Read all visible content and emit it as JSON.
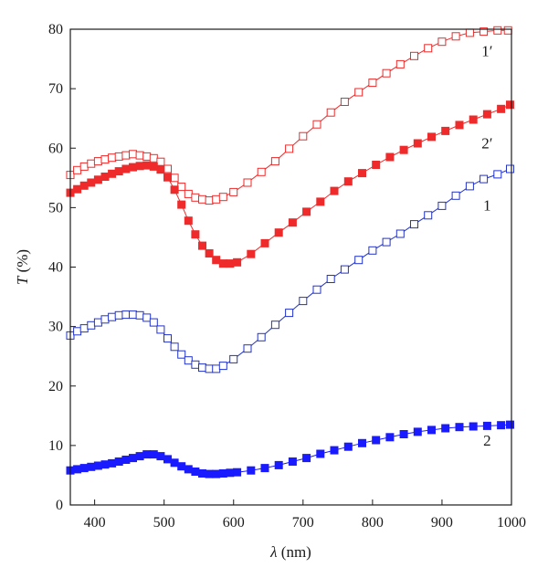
{
  "chart_data": {
    "type": "scatter",
    "xlabel_italic": "λ",
    "xlabel_unit": " (nm)",
    "ylabel_italic": "T",
    "ylabel_unit": " (%)",
    "xlim": [
      365,
      1000
    ],
    "ylim": [
      0,
      80
    ],
    "xticks": [
      "400",
      "500",
      "600",
      "700",
      "800",
      "900",
      "1000"
    ],
    "yticks": [
      "0",
      "10",
      "20",
      "30",
      "40",
      "50",
      "60",
      "70",
      "80"
    ],
    "grid": false,
    "series": [
      {
        "name": "1′",
        "color": "#ee2a2a",
        "marker": "open-square",
        "points": [
          [
            365,
            55.5
          ],
          [
            375,
            56.3
          ],
          [
            385,
            56.9
          ],
          [
            395,
            57.4
          ],
          [
            405,
            57.8
          ],
          [
            415,
            58.1
          ],
          [
            425,
            58.4
          ],
          [
            435,
            58.6
          ],
          [
            445,
            58.8
          ],
          [
            455,
            59.0
          ],
          [
            465,
            58.8
          ],
          [
            475,
            58.6
          ],
          [
            485,
            58.3
          ],
          [
            495,
            57.7
          ],
          [
            505,
            56.5
          ],
          [
            515,
            55.0
          ],
          [
            525,
            53.5
          ],
          [
            535,
            52.3
          ],
          [
            545,
            51.7
          ],
          [
            555,
            51.4
          ],
          [
            565,
            51.2
          ],
          [
            575,
            51.4
          ],
          [
            585,
            51.8
          ],
          [
            600,
            52.6
          ],
          [
            620,
            54.2
          ],
          [
            640,
            56.0
          ],
          [
            660,
            57.8
          ],
          [
            680,
            59.9
          ],
          [
            700,
            62.0
          ],
          [
            720,
            64.0
          ],
          [
            740,
            66.0
          ],
          [
            760,
            67.8
          ],
          [
            780,
            69.4
          ],
          [
            800,
            71.0
          ],
          [
            820,
            72.6
          ],
          [
            840,
            74.1
          ],
          [
            860,
            75.5
          ],
          [
            880,
            76.8
          ],
          [
            900,
            77.9
          ],
          [
            920,
            78.8
          ],
          [
            940,
            79.4
          ],
          [
            960,
            79.6
          ],
          [
            980,
            79.8
          ],
          [
            995,
            79.8
          ]
        ]
      },
      {
        "name": "2′",
        "color": "#ee2a2a",
        "marker": "filled-square",
        "points": [
          [
            365,
            52.5
          ],
          [
            375,
            53.1
          ],
          [
            385,
            53.7
          ],
          [
            395,
            54.2
          ],
          [
            405,
            54.7
          ],
          [
            415,
            55.2
          ],
          [
            425,
            55.7
          ],
          [
            435,
            56.1
          ],
          [
            445,
            56.5
          ],
          [
            455,
            56.8
          ],
          [
            465,
            57.0
          ],
          [
            475,
            57.1
          ],
          [
            485,
            56.9
          ],
          [
            495,
            56.4
          ],
          [
            505,
            55.1
          ],
          [
            515,
            53.0
          ],
          [
            525,
            50.5
          ],
          [
            535,
            47.8
          ],
          [
            545,
            45.5
          ],
          [
            555,
            43.6
          ],
          [
            565,
            42.3
          ],
          [
            575,
            41.2
          ],
          [
            585,
            40.6
          ],
          [
            595,
            40.6
          ],
          [
            605,
            40.8
          ],
          [
            625,
            42.2
          ],
          [
            645,
            44.0
          ],
          [
            665,
            45.8
          ],
          [
            685,
            47.5
          ],
          [
            705,
            49.3
          ],
          [
            725,
            51.0
          ],
          [
            745,
            52.8
          ],
          [
            765,
            54.4
          ],
          [
            785,
            55.8
          ],
          [
            805,
            57.2
          ],
          [
            825,
            58.5
          ],
          [
            845,
            59.7
          ],
          [
            865,
            60.8
          ],
          [
            885,
            61.9
          ],
          [
            905,
            62.9
          ],
          [
            925,
            63.9
          ],
          [
            945,
            64.8
          ],
          [
            965,
            65.7
          ],
          [
            985,
            66.6
          ],
          [
            998,
            67.3
          ]
        ]
      },
      {
        "name": "1",
        "color": "#2233cc",
        "marker": "open-square",
        "points": [
          [
            365,
            28.5
          ],
          [
            375,
            29.2
          ],
          [
            385,
            29.7
          ],
          [
            395,
            30.2
          ],
          [
            405,
            30.7
          ],
          [
            415,
            31.2
          ],
          [
            425,
            31.6
          ],
          [
            435,
            31.9
          ],
          [
            445,
            32.0
          ],
          [
            455,
            32.0
          ],
          [
            465,
            31.9
          ],
          [
            475,
            31.5
          ],
          [
            485,
            30.7
          ],
          [
            495,
            29.5
          ],
          [
            505,
            28.0
          ],
          [
            515,
            26.6
          ],
          [
            525,
            25.3
          ],
          [
            535,
            24.3
          ],
          [
            545,
            23.6
          ],
          [
            555,
            23.1
          ],
          [
            565,
            22.9
          ],
          [
            575,
            22.9
          ],
          [
            585,
            23.4
          ],
          [
            600,
            24.5
          ],
          [
            620,
            26.3
          ],
          [
            640,
            28.2
          ],
          [
            660,
            30.3
          ],
          [
            680,
            32.3
          ],
          [
            700,
            34.3
          ],
          [
            720,
            36.2
          ],
          [
            740,
            38.0
          ],
          [
            760,
            39.6
          ],
          [
            780,
            41.2
          ],
          [
            800,
            42.8
          ],
          [
            820,
            44.2
          ],
          [
            840,
            45.6
          ],
          [
            860,
            47.2
          ],
          [
            880,
            48.7
          ],
          [
            900,
            50.3
          ],
          [
            920,
            52.0
          ],
          [
            940,
            53.6
          ],
          [
            960,
            54.8
          ],
          [
            980,
            55.6
          ],
          [
            998,
            56.5
          ]
        ]
      },
      {
        "name": "2",
        "color": "#1a1aff",
        "marker": "filled-square",
        "points": [
          [
            365,
            5.8
          ],
          [
            375,
            6.0
          ],
          [
            385,
            6.2
          ],
          [
            395,
            6.4
          ],
          [
            405,
            6.6
          ],
          [
            415,
            6.8
          ],
          [
            425,
            7.0
          ],
          [
            435,
            7.3
          ],
          [
            445,
            7.6
          ],
          [
            455,
            7.9
          ],
          [
            465,
            8.2
          ],
          [
            475,
            8.5
          ],
          [
            485,
            8.5
          ],
          [
            495,
            8.2
          ],
          [
            505,
            7.7
          ],
          [
            515,
            7.1
          ],
          [
            525,
            6.5
          ],
          [
            535,
            6.0
          ],
          [
            545,
            5.6
          ],
          [
            555,
            5.3
          ],
          [
            565,
            5.2
          ],
          [
            575,
            5.2
          ],
          [
            585,
            5.3
          ],
          [
            595,
            5.4
          ],
          [
            605,
            5.5
          ],
          [
            625,
            5.8
          ],
          [
            645,
            6.2
          ],
          [
            665,
            6.7
          ],
          [
            685,
            7.3
          ],
          [
            705,
            7.9
          ],
          [
            725,
            8.6
          ],
          [
            745,
            9.2
          ],
          [
            765,
            9.8
          ],
          [
            785,
            10.4
          ],
          [
            805,
            10.9
          ],
          [
            825,
            11.4
          ],
          [
            845,
            11.9
          ],
          [
            865,
            12.3
          ],
          [
            885,
            12.6
          ],
          [
            905,
            12.9
          ],
          [
            925,
            13.1
          ],
          [
            945,
            13.2
          ],
          [
            965,
            13.3
          ],
          [
            985,
            13.4
          ],
          [
            998,
            13.5
          ]
        ]
      }
    ],
    "labels": [
      {
        "text": "1′",
        "x": 965,
        "y": 75.5
      },
      {
        "text": "2′",
        "x": 965,
        "y": 60.0
      },
      {
        "text": "1",
        "x": 965,
        "y": 49.5
      },
      {
        "text": "2",
        "x": 965,
        "y": 10.0
      }
    ]
  }
}
